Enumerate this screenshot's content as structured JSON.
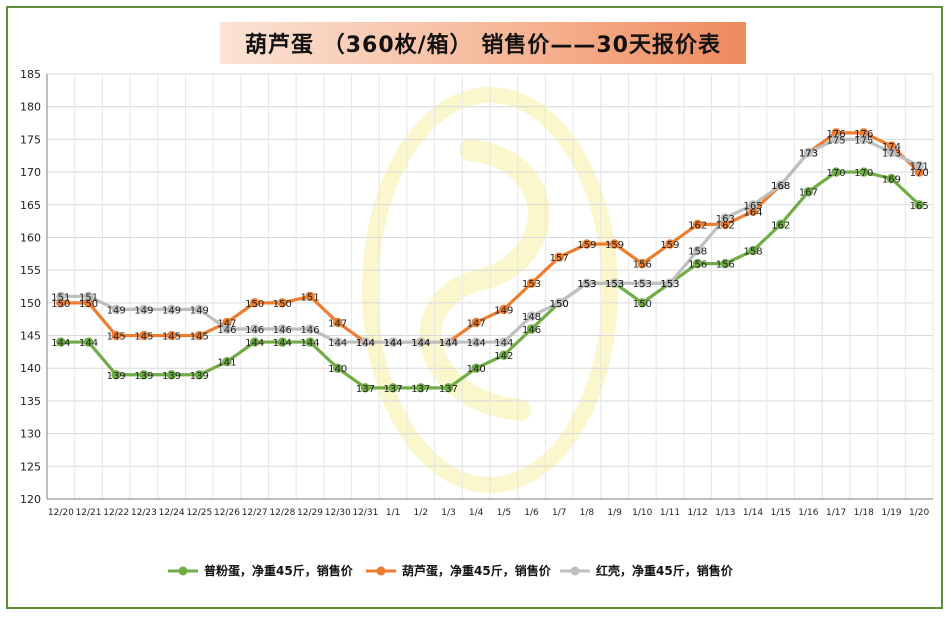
{
  "title": "葫芦蛋 （360枚/箱） 销售价——30天报价表",
  "chart_data": {
    "type": "line",
    "title": "葫芦蛋 （360枚/箱） 销售价——30天报价表",
    "categories": [
      "12/20",
      "12/21",
      "12/22",
      "12/23",
      "12/24",
      "12/25",
      "12/26",
      "12/27",
      "12/28",
      "12/29",
      "12/30",
      "12/31",
      "1/1",
      "1/2",
      "1/3",
      "1/4",
      "1/5",
      "1/6",
      "1/7",
      "1/8",
      "1/9",
      "1/10",
      "1/11",
      "1/12",
      "1/13",
      "1/14",
      "1/15",
      "1/16",
      "1/17",
      "1/18",
      "1/19",
      "1/20"
    ],
    "ylim": [
      120,
      185
    ],
    "yticks": [
      120,
      125,
      130,
      135,
      140,
      145,
      150,
      155,
      160,
      165,
      170,
      175,
      180,
      185
    ],
    "grid": true,
    "legend_position": "bottom",
    "series": [
      {
        "name": "普粉蛋，净重45斤，销售价",
        "color": "#70ad47",
        "values": [
          144,
          144,
          139,
          139,
          139,
          139,
          141,
          144,
          144,
          144,
          140,
          137,
          137,
          137,
          137,
          140,
          142,
          146,
          150,
          153,
          153,
          150,
          153,
          156,
          156,
          158,
          162,
          167,
          170,
          170,
          169,
          165
        ]
      },
      {
        "name": "葫芦蛋，净重45斤，销售价",
        "color": "#ed7d31",
        "values": [
          150,
          150,
          145,
          145,
          145,
          145,
          147,
          150,
          150,
          151,
          147,
          144,
          144,
          144,
          144,
          147,
          149,
          153,
          157,
          159,
          159,
          156,
          159,
          162,
          162,
          164,
          168,
          173,
          176,
          176,
          174,
          170
        ]
      },
      {
        "name": "红壳，净重45斤，销售价",
        "color": "#bfbfbf",
        "values": [
          151,
          151,
          149,
          149,
          149,
          149,
          146,
          146,
          146,
          146,
          144,
          144,
          144,
          144,
          144,
          144,
          144,
          148,
          150,
          153,
          153,
          153,
          153,
          158,
          163,
          165,
          168,
          173,
          175,
          175,
          173,
          171
        ]
      }
    ]
  }
}
